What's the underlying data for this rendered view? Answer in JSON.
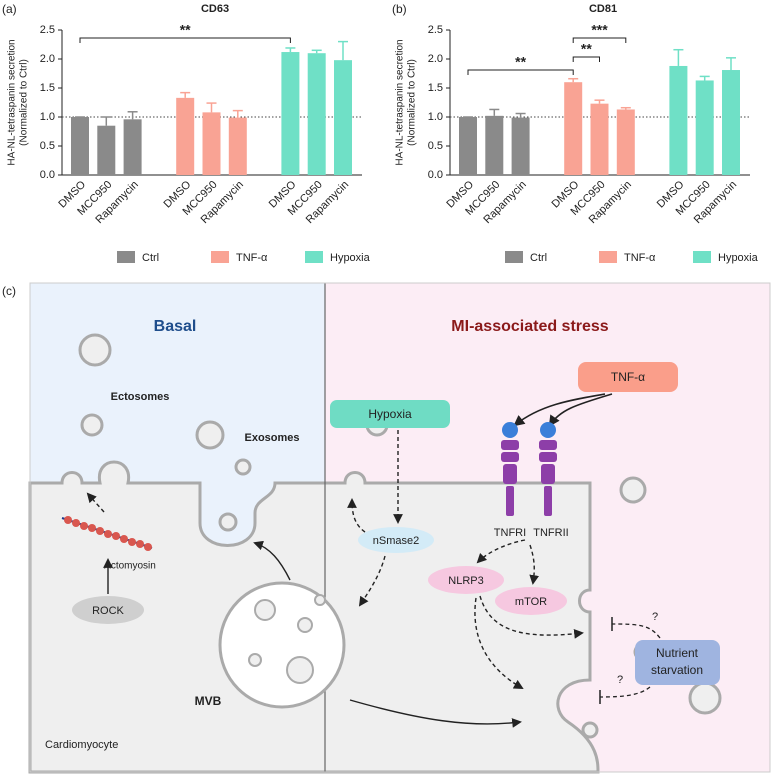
{
  "panels": [
    "(a)",
    "(b)",
    "(c)"
  ],
  "chart_data": [
    {
      "type": "bar",
      "title": "CD63",
      "y_label": [
        "HA-NL-tetraspanin secretion",
        "(Normalized to Ctrl)"
      ],
      "categories": [
        "DMSO",
        "MCC950",
        "Rapamycin"
      ],
      "series": [
        {
          "name": "Ctrl",
          "color": "#8a8a8a",
          "values": [
            1.0,
            0.85,
            0.96
          ],
          "errors": [
            0,
            0.15,
            0.13
          ]
        },
        {
          "name": "TNF-α",
          "color": "#f9a394",
          "values": [
            1.33,
            1.08,
            0.99
          ],
          "errors": [
            0.09,
            0.16,
            0.12
          ]
        },
        {
          "name": "Hypoxia",
          "color": "#6fe0c6",
          "values": [
            2.12,
            2.1,
            1.98
          ],
          "errors": [
            0.07,
            0.05,
            0.32
          ]
        }
      ],
      "ylim": [
        0,
        2.5
      ],
      "yticks": [
        {
          "value": 0,
          "label": "0.0"
        },
        0.5,
        {
          "value": 1,
          "label": "1.0"
        },
        1.5,
        {
          "value": 2,
          "label": "2.0"
        },
        2.5
      ],
      "reference_line": 1,
      "annotations": [
        "**"
      ]
    },
    {
      "type": "bar",
      "title": "CD81",
      "y_label": [
        "HA-NL-tetraspanin secretion",
        "(Normalized to Ctrl)"
      ],
      "categories": [
        "DMSO",
        "MCC950",
        "Rapamycin"
      ],
      "series": [
        {
          "name": "Ctrl",
          "color": "#8a8a8a",
          "values": [
            1.0,
            1.02,
            0.99
          ],
          "errors": [
            0,
            0.11,
            0.07
          ]
        },
        {
          "name": "TNF-α",
          "color": "#f9a394",
          "values": [
            1.6,
            1.23,
            1.13
          ],
          "errors": [
            0.06,
            0.06,
            0.03
          ]
        },
        {
          "name": "Hypoxia",
          "color": "#6fe0c6",
          "values": [
            1.88,
            1.63,
            1.81
          ],
          "errors": [
            0.28,
            0.07,
            0.21
          ]
        }
      ],
      "ylim": [
        0,
        2.5
      ],
      "yticks": [
        {
          "value": 0,
          "label": "0.0"
        },
        0.5,
        {
          "value": 1,
          "label": "1.0"
        },
        1.5,
        {
          "value": 2,
          "label": "2.0"
        },
        2.5
      ],
      "reference_line": 1,
      "annotations": [
        "**",
        "**",
        "***"
      ]
    }
  ],
  "diagram": {
    "basal": "Basal",
    "stress": "MI-associated stress",
    "ectosomes": "Ectosomes",
    "exosomes": "Exosomes",
    "actomyosin": "Actomyosin",
    "rock": "ROCK",
    "mvb": "MVB",
    "cell": "Cardiomyocyte",
    "hypoxia": "Hypoxia",
    "tnf": "TNF-α",
    "tnfr1": "TNFRI",
    "tnfr2": "TNFRII",
    "nsmase2": "nSmase2",
    "nlrp3": "NLRP3",
    "mtor": "mTOR",
    "starvation": [
      "Nutrient",
      "starvation"
    ],
    "question": [
      "?",
      "?"
    ]
  }
}
